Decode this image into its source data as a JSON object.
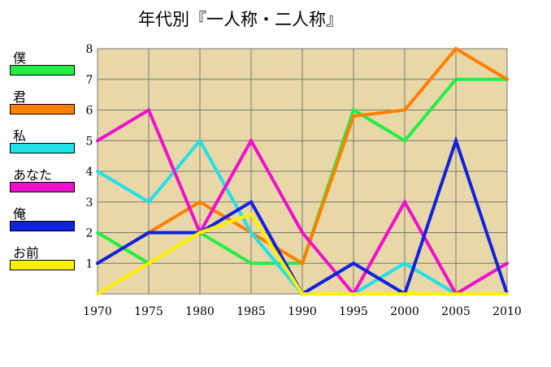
{
  "title": "年代別『一人称・二人称』",
  "chart_data": {
    "type": "line",
    "title": "年代別『一人称・二人称』",
    "x": [
      "1970",
      "1975",
      "1980",
      "1985",
      "1990",
      "1995",
      "2000",
      "2005",
      "2010"
    ],
    "ylim": [
      0,
      8
    ],
    "yticks": [
      "1",
      "2",
      "3",
      "4",
      "5",
      "6",
      "7",
      "8"
    ],
    "grid": true,
    "legend_position": "left",
    "background_color": "#E8D7A7",
    "series": [
      {
        "name": "僕",
        "color": "#22EE44",
        "values": [
          2,
          1,
          2,
          1,
          1,
          6,
          5,
          7,
          7
        ]
      },
      {
        "name": "君",
        "color": "#FF7F00",
        "values": [
          1,
          2,
          3,
          2,
          1,
          5.8,
          6,
          8,
          7
        ]
      },
      {
        "name": "私",
        "color": "#22E0E8",
        "values": [
          4,
          3,
          5,
          2,
          0,
          0,
          1,
          0,
          0
        ]
      },
      {
        "name": "あなた",
        "color": "#EE11CC",
        "values": [
          5,
          6,
          2,
          5,
          2,
          0,
          3,
          0,
          1
        ]
      },
      {
        "name": "俺",
        "color": "#1122DD",
        "values": [
          1,
          2,
          2,
          3,
          0,
          1,
          0,
          5,
          0
        ]
      },
      {
        "name": "お前",
        "color": "#FFF000",
        "values": [
          0,
          1,
          2,
          2.6,
          0,
          0,
          0,
          0,
          0
        ]
      }
    ]
  }
}
